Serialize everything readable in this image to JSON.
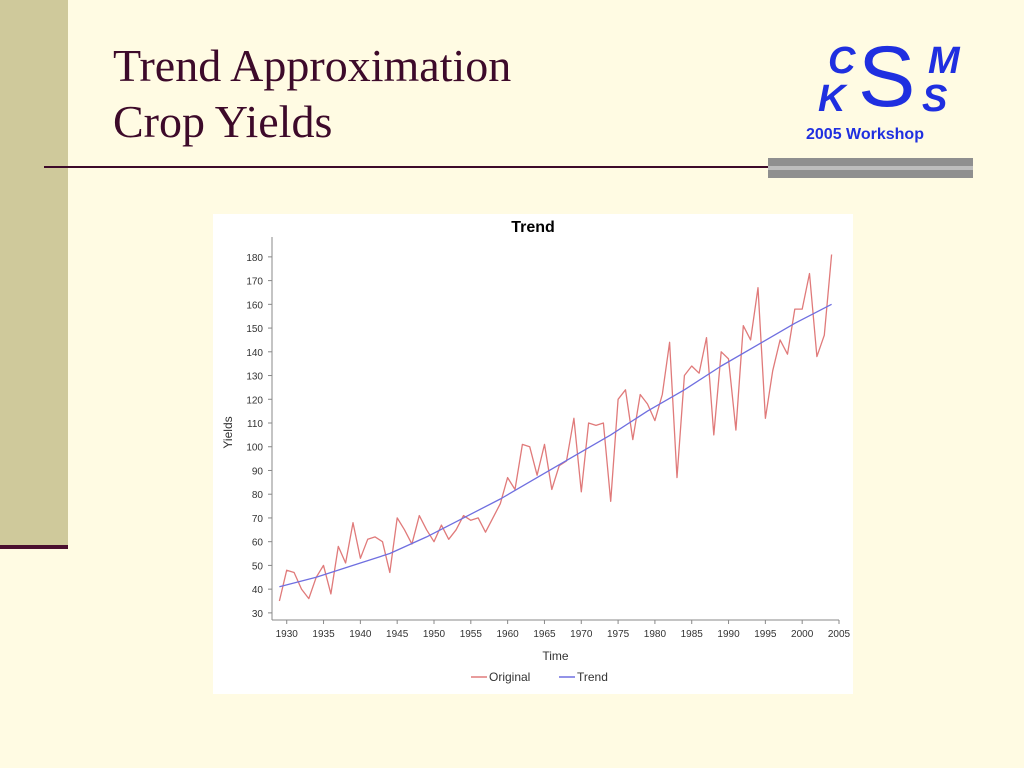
{
  "slide": {
    "title_line1": "Trend Approximation",
    "title_line2": "Crop Yields"
  },
  "logo": {
    "letters": [
      "C",
      "K",
      "S",
      "M",
      "S"
    ],
    "workshop": "2005 Workshop",
    "color": "#1f2fe0"
  },
  "colors": {
    "background": "#fffbe3",
    "title": "#3d0a2a",
    "sidebar": "#cfc99b",
    "original": "#e07a7a",
    "trend": "#6f6fe0"
  },
  "chart_data": {
    "type": "line",
    "title": "Trend",
    "xlabel": "Time",
    "ylabel": "Yields",
    "xlim": [
      1928,
      2005
    ],
    "ylim": [
      27,
      185
    ],
    "xticks": [
      1930,
      1935,
      1940,
      1945,
      1950,
      1955,
      1960,
      1965,
      1970,
      1975,
      1980,
      1985,
      1990,
      1995,
      2000,
      2005
    ],
    "yticks": [
      30,
      40,
      50,
      60,
      70,
      80,
      90,
      100,
      110,
      120,
      130,
      140,
      150,
      160,
      170,
      180
    ],
    "grid": false,
    "legend": "bottom",
    "series": [
      {
        "name": "Original",
        "color": "#e07a7a",
        "x": [
          1929,
          1930,
          1931,
          1932,
          1933,
          1934,
          1935,
          1936,
          1937,
          1938,
          1939,
          1940,
          1941,
          1942,
          1943,
          1944,
          1945,
          1946,
          1947,
          1948,
          1949,
          1950,
          1951,
          1952,
          1953,
          1954,
          1955,
          1956,
          1957,
          1958,
          1959,
          1960,
          1961,
          1962,
          1963,
          1964,
          1965,
          1966,
          1967,
          1968,
          1969,
          1970,
          1971,
          1972,
          1973,
          1974,
          1975,
          1976,
          1977,
          1978,
          1979,
          1980,
          1981,
          1982,
          1983,
          1984,
          1985,
          1986,
          1987,
          1988,
          1989,
          1990,
          1991,
          1992,
          1993,
          1994,
          1995,
          1996,
          1997,
          1998,
          1999,
          2000,
          2001,
          2002,
          2003,
          2004
        ],
        "y": [
          35,
          48,
          47,
          40,
          36,
          45,
          50,
          38,
          58,
          51,
          68,
          53,
          61,
          62,
          60,
          47,
          70,
          65,
          59,
          71,
          65,
          60,
          67,
          61,
          65,
          71,
          69,
          70,
          64,
          70,
          76,
          87,
          82,
          101,
          100,
          88,
          101,
          82,
          92,
          94,
          112,
          81,
          110,
          109,
          110,
          77,
          120,
          124,
          103,
          122,
          118,
          111,
          122,
          144,
          87,
          130,
          134,
          131,
          146,
          105,
          140,
          137,
          107,
          151,
          145,
          167,
          112,
          132,
          145,
          139,
          158,
          158,
          173,
          138,
          147,
          181
        ]
      },
      {
        "name": "Trend",
        "color": "#6f6fe0",
        "x": [
          1929,
          1934,
          1939,
          1944,
          1949,
          1954,
          1959,
          1964,
          1969,
          1974,
          1979,
          1984,
          1989,
          1994,
          1999,
          2004
        ],
        "y": [
          41,
          45,
          50,
          55,
          62,
          70,
          78,
          87,
          96,
          105,
          115,
          124,
          134,
          143,
          152,
          160
        ]
      }
    ]
  }
}
